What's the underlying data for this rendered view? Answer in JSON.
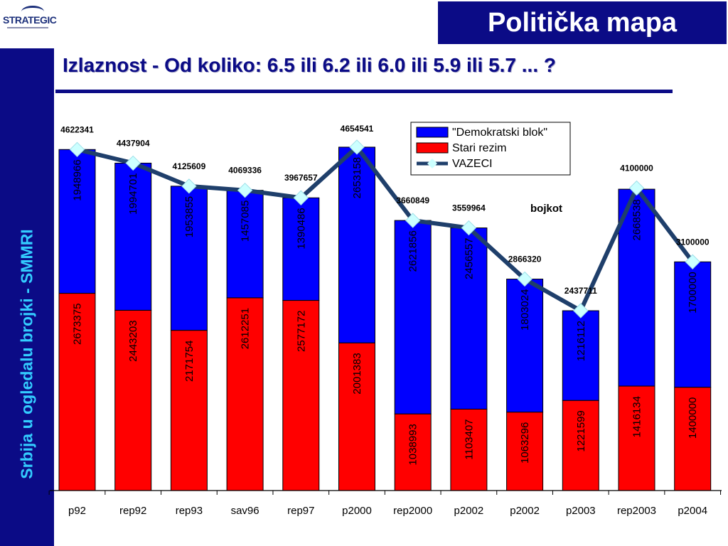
{
  "header": {
    "logo_text": "STRATEGIC",
    "title": "Politička mapa",
    "subtitle": "Izlaznost  - Od koliko: 6.5 ili 6.2 ili 6.0 ili 5.9 ili 5.7 ... ?",
    "sidebar_text": "Srbija u ogledalu brojki - SMMRI"
  },
  "colors": {
    "navy": "#0b0b86",
    "demokratski": "#0000ff",
    "stari": "#ff0000",
    "vazeci_line": "#1f3f6b",
    "vazeci_marker": "#ccffff"
  },
  "chart_data": {
    "type": "bar",
    "stacked": true,
    "categories": [
      "p92",
      "rep92",
      "rep93",
      "sav96",
      "rep97",
      "p2000",
      "rep2000",
      "p2002",
      "p2002",
      "p2003",
      "rep2003",
      "p2004"
    ],
    "series": [
      {
        "name": "Stari rezim",
        "values": [
          2673375,
          2443203,
          2171754,
          2612251,
          2577172,
          2001383,
          1038993,
          1103407,
          1063296,
          1221599,
          1416134,
          1400000
        ]
      },
      {
        "name": "\"Demokratski blok\"",
        "values": [
          1948966,
          1994701,
          1953855,
          1457085,
          1390486,
          2653158,
          2621856,
          2456557,
          1803024,
          1216112,
          2668538,
          1700000
        ]
      },
      {
        "name": "VAZECI",
        "type": "line",
        "values": [
          4622341,
          4437904,
          4125609,
          4069336,
          3967657,
          4654541,
          3660849,
          3559964,
          2866320,
          2437711,
          4100000,
          3100000
        ]
      }
    ],
    "annotations": [
      {
        "text": "bojkot"
      }
    ],
    "legend_position": "top-right",
    "ylim": [
      0,
      5000000
    ],
    "grid": false
  }
}
